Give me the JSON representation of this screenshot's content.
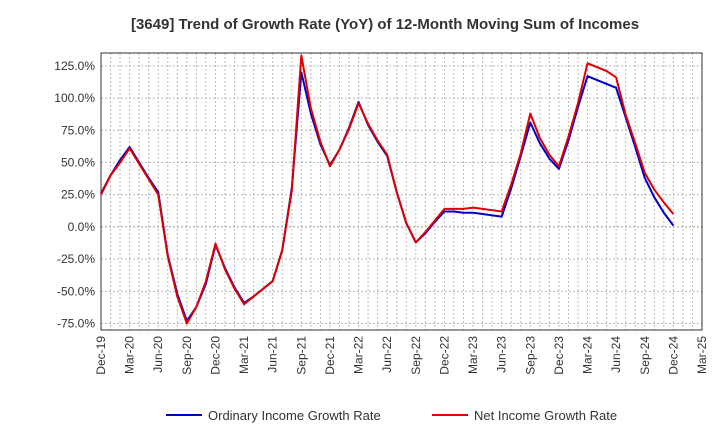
{
  "chart_data": {
    "type": "line",
    "title": "[3649]  Trend of Growth Rate (YoY) of 12-Month Moving Sum of Incomes",
    "xlabel": "",
    "ylabel": "",
    "x_tick_labels": [
      "Dec-19",
      "Mar-20",
      "Jun-20",
      "Sep-20",
      "Dec-20",
      "Mar-21",
      "Jun-21",
      "Sep-21",
      "Dec-21",
      "Mar-22",
      "Jun-22",
      "Sep-22",
      "Dec-22",
      "Mar-23",
      "Jun-23",
      "Sep-23",
      "Dec-23",
      "Mar-24",
      "Jun-24",
      "Sep-24",
      "Dec-24",
      "Mar-25"
    ],
    "y_tick_labels": [
      "125.0%",
      "100.0%",
      "75.0%",
      "50.0%",
      "25.0%",
      "0.0%",
      "-25.0%",
      "-50.0%",
      "-75.0%"
    ],
    "y_ticks": [
      125,
      100,
      75,
      50,
      25,
      0,
      -25,
      -50,
      -75
    ],
    "ylim": [
      -80,
      135
    ],
    "x": [
      "Dec-19",
      "Jan-20",
      "Feb-20",
      "Mar-20",
      "Apr-20",
      "May-20",
      "Jun-20",
      "Jul-20",
      "Aug-20",
      "Sep-20",
      "Oct-20",
      "Nov-20",
      "Dec-20",
      "Jan-21",
      "Feb-21",
      "Mar-21",
      "Apr-21",
      "May-21",
      "Jun-21",
      "Jul-21",
      "Aug-21",
      "Sep-21",
      "Oct-21",
      "Nov-21",
      "Dec-21",
      "Jan-22",
      "Feb-22",
      "Mar-22",
      "Apr-22",
      "May-22",
      "Jun-22",
      "Jul-22",
      "Aug-22",
      "Sep-22",
      "Oct-22",
      "Nov-22",
      "Dec-22",
      "Jan-23",
      "Feb-23",
      "Mar-23",
      "Apr-23",
      "May-23",
      "Jun-23",
      "Jul-23",
      "Aug-23",
      "Sep-23",
      "Oct-23",
      "Nov-23",
      "Dec-23",
      "Jan-24",
      "Feb-24",
      "Mar-24",
      "Apr-24",
      "May-24",
      "Jun-24",
      "Jul-24",
      "Aug-24",
      "Sep-24",
      "Oct-24",
      "Nov-24",
      "Dec-24"
    ],
    "series": [
      {
        "name": "Ordinary Income Growth Rate",
        "color": "#0000cc",
        "values": [
          26,
          40,
          52,
          62,
          50,
          38,
          27,
          -22,
          -52,
          -73,
          -62,
          -44,
          -14,
          -32,
          -47,
          -59,
          -54,
          -48,
          -42,
          -18,
          30,
          120,
          88,
          64,
          48,
          60,
          77,
          97,
          79,
          66,
          55,
          27,
          3,
          -12,
          -5,
          4,
          12,
          12,
          11,
          11,
          10,
          9,
          8,
          30,
          55,
          81,
          65,
          53,
          45,
          67,
          93,
          117,
          114,
          111,
          108,
          85,
          62,
          38,
          23,
          11,
          1
        ]
      },
      {
        "name": "Net Income Growth Rate",
        "color": "#dd0000",
        "values": [
          25,
          40,
          50,
          61,
          49,
          37,
          25,
          -23,
          -54,
          -75,
          -62,
          -42,
          -13,
          -33,
          -48,
          -60,
          -54,
          -48,
          -42,
          -18,
          28,
          133,
          92,
          66,
          47,
          60,
          76,
          96,
          80,
          67,
          56,
          27,
          3,
          -12,
          -4,
          5,
          14,
          14,
          14,
          15,
          14,
          13,
          12,
          33,
          57,
          88,
          69,
          56,
          47,
          70,
          96,
          127,
          124,
          121,
          116,
          87,
          65,
          42,
          29,
          19,
          10
        ]
      }
    ]
  }
}
